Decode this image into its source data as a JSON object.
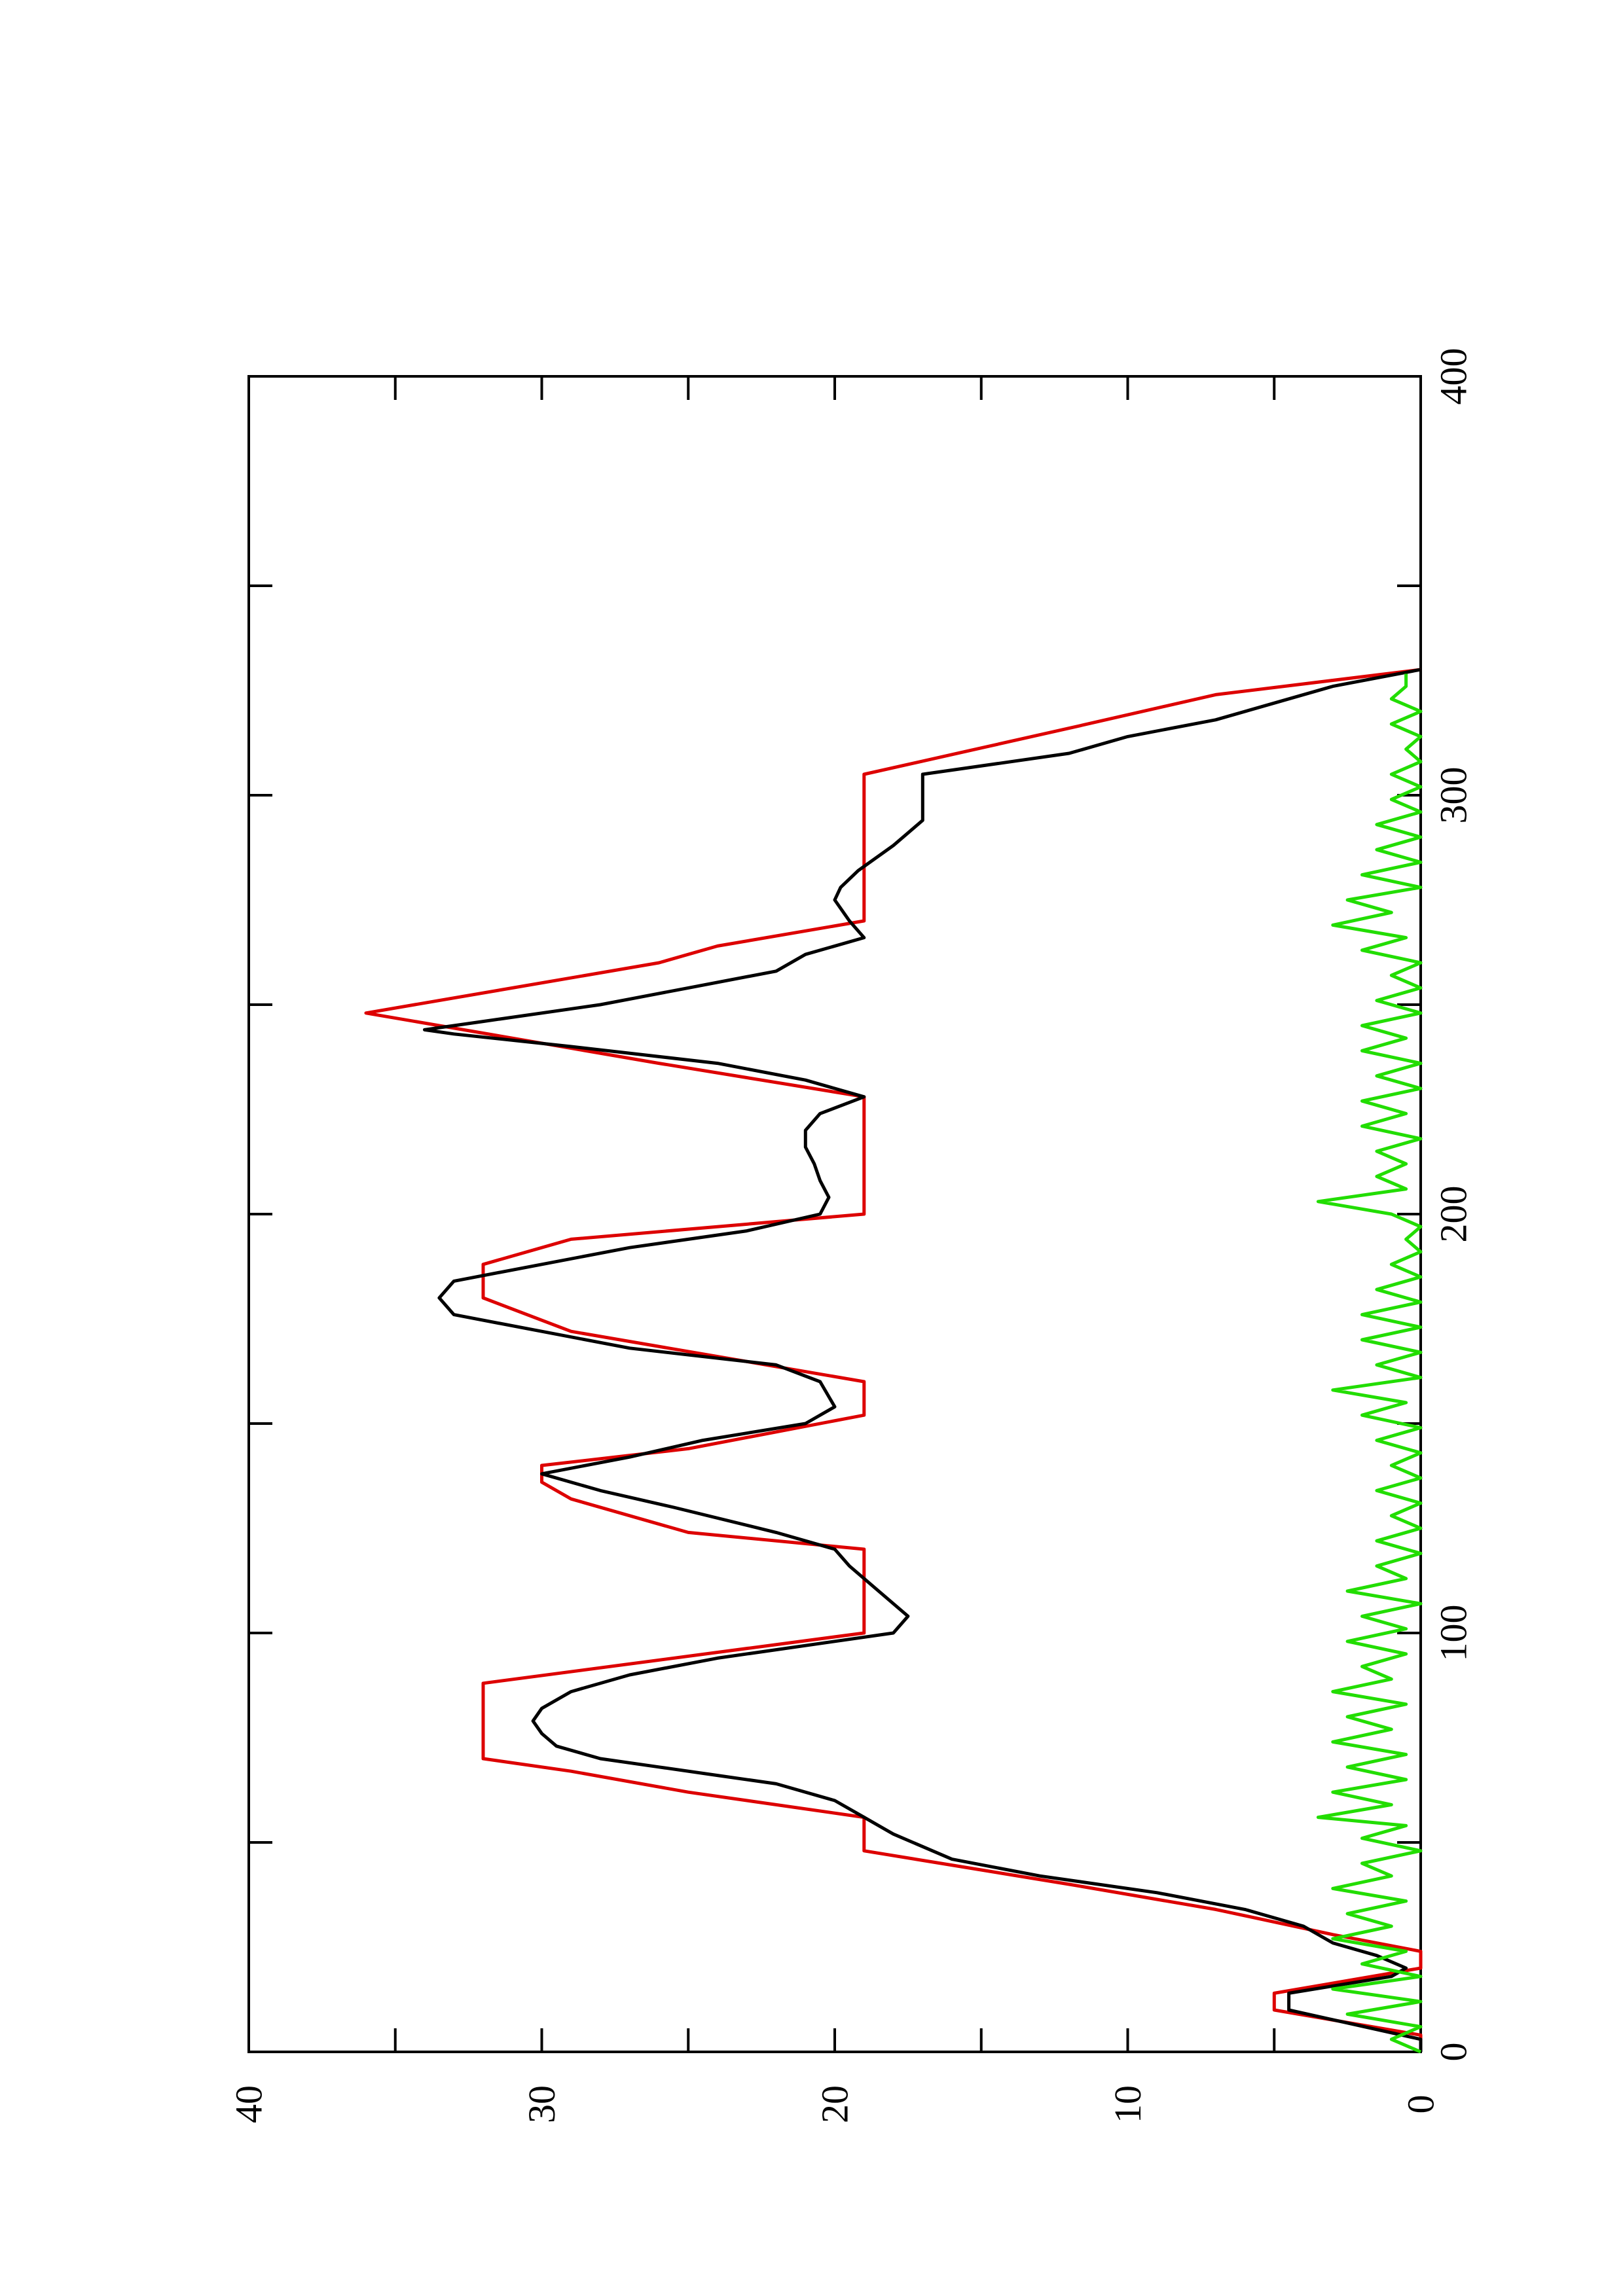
{
  "chart_data": {
    "type": "line",
    "orientation": "rotated-90-ccw",
    "title": "",
    "xlabel": "",
    "ylabel": "",
    "xlim": [
      0,
      400
    ],
    "ylim": [
      0,
      40
    ],
    "x_ticks": [
      0,
      100,
      200,
      300,
      400
    ],
    "x_minor_ticks": [
      50,
      150,
      250,
      350
    ],
    "y_ticks": [
      0,
      10,
      20,
      30,
      40
    ],
    "y_minor_ticks": [
      5,
      15,
      25,
      35
    ],
    "x_tick_labels": [
      "0",
      "100",
      "200",
      "300",
      "400"
    ],
    "y_tick_labels": [
      "0",
      "10",
      "20",
      "30",
      "40"
    ],
    "grid": false,
    "legend": "none",
    "series": [
      {
        "color": "#dd0000",
        "points": [
          [
            0,
            0
          ],
          [
            4,
            0
          ],
          [
            10,
            5
          ],
          [
            14,
            5
          ],
          [
            20,
            0
          ],
          [
            24,
            0
          ],
          [
            28,
            3
          ],
          [
            34,
            7
          ],
          [
            40,
            12
          ],
          [
            48,
            19
          ],
          [
            56,
            19
          ],
          [
            62,
            25
          ],
          [
            67,
            29
          ],
          [
            70,
            32
          ],
          [
            80,
            32
          ],
          [
            88,
            32
          ],
          [
            100,
            19
          ],
          [
            120,
            19
          ],
          [
            124,
            25
          ],
          [
            132,
            29
          ],
          [
            136,
            30
          ],
          [
            140,
            30
          ],
          [
            144,
            25
          ],
          [
            152,
            19
          ],
          [
            160,
            19
          ],
          [
            166,
            24
          ],
          [
            172,
            29
          ],
          [
            180,
            32
          ],
          [
            188,
            32
          ],
          [
            194,
            29
          ],
          [
            200,
            19
          ],
          [
            228,
            19
          ],
          [
            236,
            26
          ],
          [
            248,
            36
          ],
          [
            260,
            26
          ],
          [
            264,
            24
          ],
          [
            270,
            19
          ],
          [
            305,
            19
          ],
          [
            316,
            12
          ],
          [
            324,
            7
          ],
          [
            330,
            0
          ]
        ]
      },
      {
        "color": "#000000",
        "points": [
          [
            0,
            0
          ],
          [
            3,
            0
          ],
          [
            10,
            4.5
          ],
          [
            14,
            4.5
          ],
          [
            18,
            1
          ],
          [
            20,
            0.5
          ],
          [
            23,
            1.5
          ],
          [
            26,
            3
          ],
          [
            30,
            4
          ],
          [
            34,
            6
          ],
          [
            38,
            9
          ],
          [
            42,
            13
          ],
          [
            46,
            16
          ],
          [
            52,
            18
          ],
          [
            56,
            19
          ],
          [
            60,
            20
          ],
          [
            64,
            22
          ],
          [
            66,
            24
          ],
          [
            68,
            26
          ],
          [
            70,
            28
          ],
          [
            73,
            29.5
          ],
          [
            76,
            30
          ],
          [
            79,
            30.3
          ],
          [
            82,
            30
          ],
          [
            86,
            29
          ],
          [
            90,
            27
          ],
          [
            94,
            24
          ],
          [
            98,
            20
          ],
          [
            100,
            18
          ],
          [
            104,
            17.5
          ],
          [
            110,
            18.5
          ],
          [
            116,
            19.5
          ],
          [
            120,
            20
          ],
          [
            124,
            22
          ],
          [
            130,
            25.5
          ],
          [
            134,
            28
          ],
          [
            138,
            30
          ],
          [
            142,
            27
          ],
          [
            146,
            24.5
          ],
          [
            150,
            21
          ],
          [
            154,
            20
          ],
          [
            160,
            20.5
          ],
          [
            164,
            22
          ],
          [
            168,
            27
          ],
          [
            172,
            30
          ],
          [
            176,
            33
          ],
          [
            180,
            33.5
          ],
          [
            184,
            33
          ],
          [
            188,
            30
          ],
          [
            192,
            27
          ],
          [
            196,
            23
          ],
          [
            200,
            20.5
          ],
          [
            204,
            20.2
          ],
          [
            208,
            20.5
          ],
          [
            212,
            20.7
          ],
          [
            216,
            21
          ],
          [
            220,
            21
          ],
          [
            224,
            20.5
          ],
          [
            228,
            19
          ],
          [
            232,
            21
          ],
          [
            236,
            24
          ],
          [
            240,
            29
          ],
          [
            243,
            33
          ],
          [
            244,
            34
          ],
          [
            246,
            32
          ],
          [
            250,
            28
          ],
          [
            254,
            25
          ],
          [
            258,
            22
          ],
          [
            262,
            21
          ],
          [
            266,
            19
          ],
          [
            270,
            19.5
          ],
          [
            275,
            20
          ],
          [
            278,
            19.8
          ],
          [
            282,
            19.2
          ],
          [
            288,
            18
          ],
          [
            294,
            17
          ],
          [
            305,
            17
          ],
          [
            310,
            12
          ],
          [
            314,
            10
          ],
          [
            318,
            7
          ],
          [
            322,
            5
          ],
          [
            326,
            3
          ],
          [
            330,
            0
          ]
        ]
      },
      {
        "color": "#22dd00",
        "points": [
          [
            0,
            0
          ],
          [
            3,
            1
          ],
          [
            6,
            0
          ],
          [
            9,
            2.5
          ],
          [
            12,
            0
          ],
          [
            15,
            3
          ],
          [
            18,
            0
          ],
          [
            21,
            2
          ],
          [
            24,
            0.5
          ],
          [
            27,
            3
          ],
          [
            30,
            1
          ],
          [
            33,
            2.5
          ],
          [
            36,
            0.5
          ],
          [
            39,
            3
          ],
          [
            42,
            1
          ],
          [
            45,
            2
          ],
          [
            48,
            0
          ],
          [
            51,
            2
          ],
          [
            54,
            0.5
          ],
          [
            56,
            3.5
          ],
          [
            59,
            1
          ],
          [
            62,
            3
          ],
          [
            65,
            0.5
          ],
          [
            68,
            2.5
          ],
          [
            71,
            0.5
          ],
          [
            74,
            3
          ],
          [
            77,
            1
          ],
          [
            80,
            2.5
          ],
          [
            83,
            0.5
          ],
          [
            86,
            3
          ],
          [
            89,
            1
          ],
          [
            92,
            2
          ],
          [
            95,
            0.5
          ],
          [
            98,
            2.5
          ],
          [
            101,
            0.5
          ],
          [
            104,
            2
          ],
          [
            107,
            0
          ],
          [
            110,
            2.5
          ],
          [
            113,
            0.5
          ],
          [
            116,
            1.5
          ],
          [
            119,
            0
          ],
          [
            122,
            1.5
          ],
          [
            125,
            0
          ],
          [
            128,
            1
          ],
          [
            131,
            0
          ],
          [
            134,
            1.5
          ],
          [
            137,
            0
          ],
          [
            140,
            1
          ],
          [
            143,
            0
          ],
          [
            146,
            1.5
          ],
          [
            149,
            0
          ],
          [
            152,
            2
          ],
          [
            155,
            0.5
          ],
          [
            158,
            3
          ],
          [
            161,
            0
          ],
          [
            164,
            1.5
          ],
          [
            167,
            0
          ],
          [
            170,
            2
          ],
          [
            173,
            0
          ],
          [
            176,
            2
          ],
          [
            179,
            0
          ],
          [
            182,
            1.5
          ],
          [
            185,
            0
          ],
          [
            188,
            1
          ],
          [
            191,
            0
          ],
          [
            194,
            0.5
          ],
          [
            197,
            0
          ],
          [
            200,
            1
          ],
          [
            203,
            3.5
          ],
          [
            206,
            0.5
          ],
          [
            209,
            1.5
          ],
          [
            212,
            0.5
          ],
          [
            215,
            1.5
          ],
          [
            218,
            0
          ],
          [
            221,
            2
          ],
          [
            224,
            0.5
          ],
          [
            227,
            2
          ],
          [
            230,
            0
          ],
          [
            233,
            1.5
          ],
          [
            236,
            0
          ],
          [
            239,
            2
          ],
          [
            242,
            0.5
          ],
          [
            245,
            2
          ],
          [
            248,
            0
          ],
          [
            251,
            1.5
          ],
          [
            254,
            0
          ],
          [
            257,
            1
          ],
          [
            260,
            0
          ],
          [
            263,
            2
          ],
          [
            266,
            0.5
          ],
          [
            269,
            3
          ],
          [
            272,
            1
          ],
          [
            275,
            2.5
          ],
          [
            278,
            0
          ],
          [
            281,
            2
          ],
          [
            284,
            0
          ],
          [
            287,
            1.5
          ],
          [
            290,
            0
          ],
          [
            293,
            1.5
          ],
          [
            296,
            0
          ],
          [
            299,
            1
          ],
          [
            302,
            0
          ],
          [
            305,
            1
          ],
          [
            308,
            0
          ],
          [
            311,
            0.5
          ],
          [
            314,
            0
          ],
          [
            317,
            1
          ],
          [
            320,
            0
          ],
          [
            323,
            1
          ],
          [
            326,
            0.5
          ],
          [
            329,
            0.5
          ]
        ]
      }
    ]
  }
}
